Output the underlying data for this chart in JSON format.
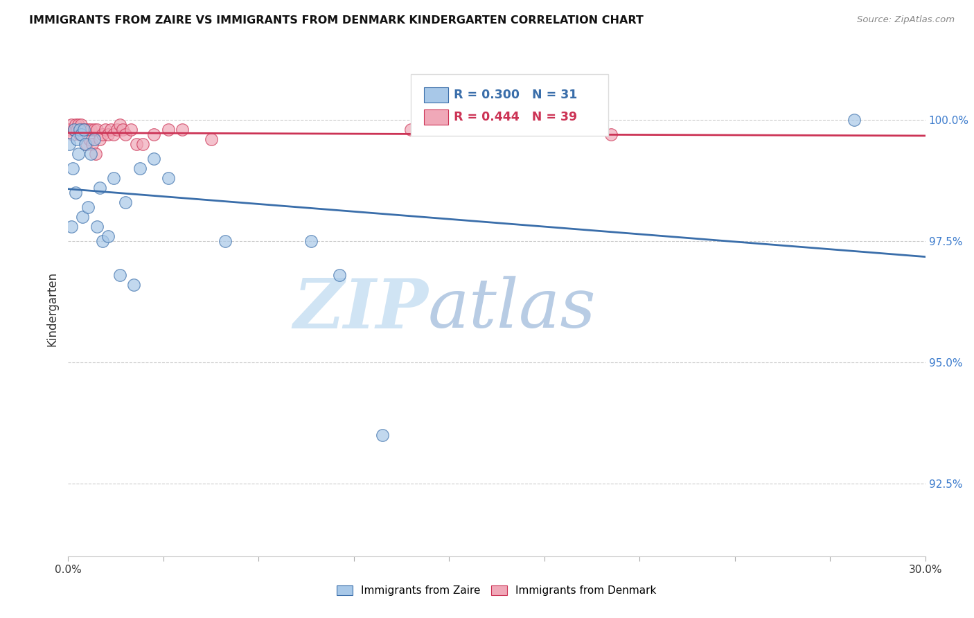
{
  "title": "IMMIGRANTS FROM ZAIRE VS IMMIGRANTS FROM DENMARK KINDERGARTEN CORRELATION CHART",
  "source": "Source: ZipAtlas.com",
  "ylabel": "Kindergarten",
  "yticks": [
    92.5,
    95.0,
    97.5,
    100.0
  ],
  "ytick_labels": [
    "92.5%",
    "95.0%",
    "97.5%",
    "100.0%"
  ],
  "xmin": 0.0,
  "xmax": 30.0,
  "ymin": 91.0,
  "ymax": 101.2,
  "legend_zaire": "Immigrants from Zaire",
  "legend_denmark": "Immigrants from Denmark",
  "R_zaire": 0.3,
  "N_zaire": 31,
  "R_denmark": 0.444,
  "N_denmark": 39,
  "color_zaire": "#a8c8e8",
  "color_denmark": "#f0a8b8",
  "line_color_zaire": "#3a6eaa",
  "line_color_denmark": "#cc3355",
  "watermark_zip": "ZIP",
  "watermark_atlas": "atlas",
  "watermark_color_zip": "#d0e4f4",
  "watermark_color_atlas": "#b8cce4",
  "zaire_x": [
    0.05,
    0.1,
    0.15,
    0.2,
    0.25,
    0.3,
    0.35,
    0.4,
    0.45,
    0.5,
    0.55,
    0.6,
    0.7,
    0.8,
    0.9,
    1.0,
    1.1,
    1.2,
    1.4,
    1.6,
    1.8,
    2.0,
    2.3,
    2.5,
    3.0,
    3.5,
    5.5,
    8.5,
    9.5,
    11.0,
    27.5
  ],
  "zaire_y": [
    99.5,
    97.8,
    99.0,
    99.8,
    98.5,
    99.6,
    99.3,
    99.8,
    99.7,
    98.0,
    99.8,
    99.5,
    98.2,
    99.3,
    99.6,
    97.8,
    98.6,
    97.5,
    97.6,
    98.8,
    96.8,
    98.3,
    96.6,
    99.0,
    99.2,
    98.8,
    97.5,
    97.5,
    96.8,
    93.5,
    100.0
  ],
  "denmark_x": [
    0.05,
    0.1,
    0.15,
    0.2,
    0.25,
    0.3,
    0.35,
    0.4,
    0.45,
    0.5,
    0.55,
    0.6,
    0.65,
    0.7,
    0.75,
    0.8,
    0.85,
    0.9,
    0.95,
    1.0,
    1.1,
    1.2,
    1.3,
    1.4,
    1.5,
    1.6,
    1.7,
    1.8,
    1.9,
    2.0,
    2.2,
    2.4,
    2.6,
    3.0,
    3.5,
    4.0,
    5.0,
    12.0,
    19.0
  ],
  "denmark_y": [
    99.8,
    99.9,
    99.7,
    99.8,
    99.9,
    99.8,
    99.9,
    99.7,
    99.9,
    99.8,
    99.7,
    99.8,
    99.5,
    99.8,
    99.6,
    99.8,
    99.5,
    99.8,
    99.3,
    99.8,
    99.6,
    99.7,
    99.8,
    99.7,
    99.8,
    99.7,
    99.8,
    99.9,
    99.8,
    99.7,
    99.8,
    99.5,
    99.5,
    99.7,
    99.8,
    99.8,
    99.6,
    99.8,
    99.7
  ]
}
